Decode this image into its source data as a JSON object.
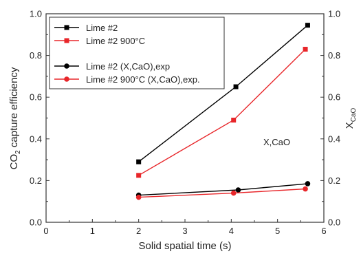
{
  "chart_data": {
    "type": "line",
    "xlabel": "Solid spatial time (s)",
    "ylabel_left": {
      "main": "CO",
      "sub": "2",
      "rest": " capture efficiency"
    },
    "ylabel_right": {
      "main": "X",
      "sub": "CaO"
    },
    "annotation": "X,CaO",
    "xlim": [
      0,
      6
    ],
    "ylim_left": [
      0,
      1.0
    ],
    "ylim_right": [
      0,
      1.0
    ],
    "x_ticks": [
      0,
      1,
      2,
      3,
      4,
      5,
      6
    ],
    "y_ticks_left": [
      "0.0",
      "0.2",
      "0.4",
      "0.6",
      "0.8",
      "1.0"
    ],
    "y_ticks_right": [
      "0.0",
      "0.2",
      "0.4",
      "0.6",
      "0.8",
      "1.0"
    ],
    "grid": false,
    "legend_position": "top-left",
    "series": [
      {
        "name": "Lime #2",
        "color": "#000000",
        "marker": "square",
        "x": [
          2.0,
          4.1,
          5.65
        ],
        "y": [
          0.29,
          0.65,
          0.945
        ]
      },
      {
        "name": "Lime #2 900°C",
        "color": "#e8262a",
        "marker": "square",
        "x": [
          2.0,
          4.05,
          5.6
        ],
        "y": [
          0.225,
          0.49,
          0.83
        ]
      },
      {
        "name": "Lime #2 (X,CaO),exp",
        "color": "#000000",
        "marker": "circle",
        "x": [
          2.0,
          4.15,
          5.65
        ],
        "y": [
          0.13,
          0.155,
          0.185
        ]
      },
      {
        "name": "Lime #2 900°C (X,CaO),exp.",
        "color": "#e8262a",
        "marker": "circle",
        "x": [
          2.0,
          4.05,
          5.6
        ],
        "y": [
          0.12,
          0.14,
          0.16
        ]
      }
    ]
  }
}
